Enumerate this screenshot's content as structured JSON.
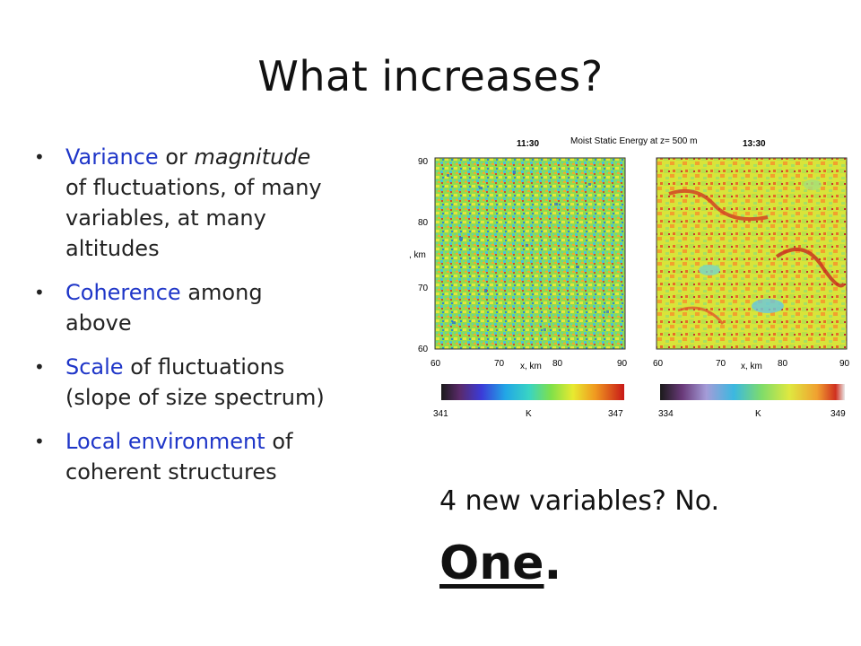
{
  "slide": {
    "title": "What increases?",
    "bullets": [
      {
        "l1_hl": "Variance",
        "l1_a": " or ",
        "l1_it": "magnitude",
        "l2": "of fluctuations, of many",
        "l3": "variables, at many",
        "l4": "altitudes"
      },
      {
        "l1_hl": "Coherence",
        "l1_a": " among",
        "l2": "above"
      },
      {
        "l1_hl": "Scale",
        "l1_a": " of fluctuations",
        "l2": "(slope of size spectrum)"
      },
      {
        "l1_hl": "Local environment",
        "l1_a": " of",
        "l2": "coherent structures"
      }
    ],
    "bottom_line1": "4 new variables? No.",
    "bottom_one": "One",
    "bottom_period": "."
  },
  "figure": {
    "title": "Moist Static Energy at z= 500 m",
    "ylabel": ", km",
    "xlabel": "x, km",
    "unit": "K",
    "panels": [
      {
        "time": "11:30",
        "x_ticks": [
          "60",
          "70",
          "80",
          "90"
        ],
        "y_ticks": [
          "90",
          "80",
          "70",
          "60"
        ],
        "cbar_min": "341",
        "cbar_max": "347"
      },
      {
        "time": "13:30",
        "x_ticks": [
          "60",
          "70",
          "80",
          "90"
        ],
        "cbar_min": "334",
        "cbar_max": "349"
      }
    ]
  }
}
